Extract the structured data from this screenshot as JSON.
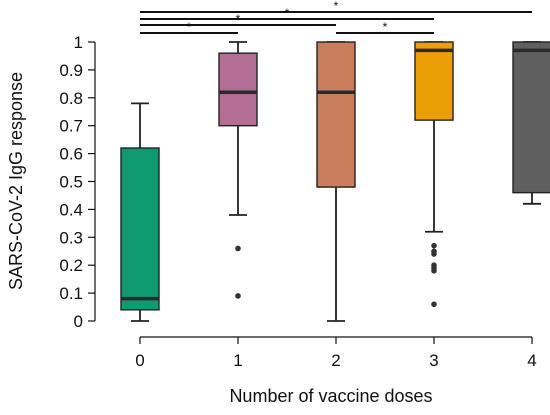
{
  "chart_data": {
    "type": "box",
    "title": "",
    "xlabel": "Number of vaccine doses",
    "ylabel": "SARS-CoV-2 IgG response",
    "ylim": [
      0,
      1
    ],
    "yticks": [
      "0",
      "0.1",
      "0.2",
      "0.3",
      "0.4",
      "0.5",
      "0.6",
      "0.7",
      "0.8",
      "0.9",
      "1"
    ],
    "categories": [
      "0",
      "1",
      "2",
      "3",
      "4"
    ],
    "grid": false,
    "legend": "none",
    "boxes": [
      {
        "category": "0",
        "color": "#0f9a72",
        "whisker_low": 0.0,
        "q1": 0.04,
        "median": 0.08,
        "q3": 0.62,
        "whisker_high": 0.78,
        "outliers": []
      },
      {
        "category": "1",
        "color": "#b46d94",
        "whisker_low": 0.38,
        "q1": 0.7,
        "median": 0.82,
        "q3": 0.96,
        "whisker_high": 1.0,
        "outliers": [
          0.26,
          0.09
        ]
      },
      {
        "category": "2",
        "color": "#c97e5b",
        "whisker_low": 0.0,
        "q1": 0.48,
        "median": 0.82,
        "q3": 1.0,
        "whisker_high": 1.0,
        "outliers": []
      },
      {
        "category": "3",
        "color": "#ec9f05",
        "whisker_low": 0.32,
        "q1": 0.72,
        "median": 0.97,
        "q3": 1.0,
        "whisker_high": 1.0,
        "outliers": [
          0.27,
          0.25,
          0.24,
          0.2,
          0.19,
          0.18,
          0.06
        ]
      },
      {
        "category": "4",
        "color": "#5f5f5f",
        "whisker_low": 0.42,
        "q1": 0.46,
        "median": 0.97,
        "q3": 1.0,
        "whisker_high": 1.0,
        "outliers": []
      }
    ],
    "significance": [
      {
        "from": "0",
        "to": "1",
        "label": "*"
      },
      {
        "from": "0",
        "to": "2",
        "label": "*"
      },
      {
        "from": "0",
        "to": "3",
        "label": "*"
      },
      {
        "from": "0",
        "to": "4",
        "label": "*"
      },
      {
        "from": "2",
        "to": "3",
        "label": "*"
      }
    ]
  }
}
